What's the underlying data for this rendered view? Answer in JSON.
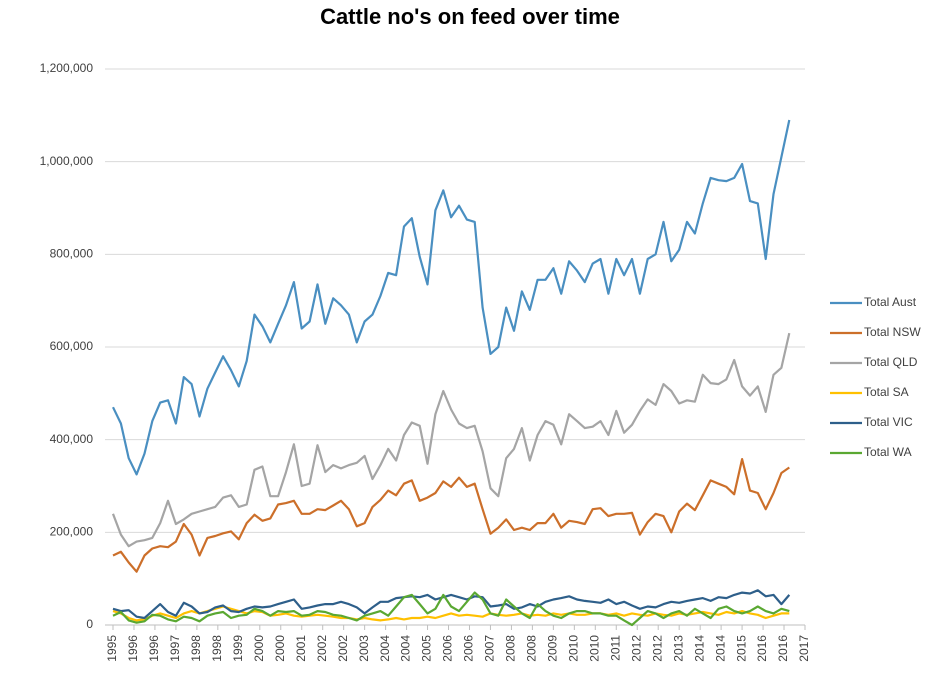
{
  "chart_data": {
    "type": "line",
    "title": "Cattle no's on feed over time",
    "x": [
      1995,
      1995.25,
      1995.5,
      1995.75,
      1996,
      1996.25,
      1996.5,
      1996.75,
      1997,
      1997.25,
      1997.5,
      1997.75,
      1998,
      1998.25,
      1998.5,
      1998.75,
      1999,
      1999.25,
      1999.5,
      1999.75,
      2000,
      2000.25,
      2000.5,
      2000.75,
      2001,
      2001.25,
      2001.5,
      2001.75,
      2002,
      2002.25,
      2002.5,
      2002.75,
      2003,
      2003.25,
      2003.5,
      2003.75,
      2004,
      2004.25,
      2004.5,
      2004.75,
      2005,
      2005.25,
      2005.5,
      2005.75,
      2006,
      2006.25,
      2006.5,
      2006.75,
      2007,
      2007.25,
      2007.5,
      2007.75,
      2008,
      2008.25,
      2008.5,
      2008.75,
      2009,
      2009.25,
      2009.5,
      2009.75,
      2010,
      2010.25,
      2010.5,
      2010.75,
      2011,
      2011.25,
      2011.5,
      2011.75,
      2012,
      2012.25,
      2012.5,
      2012.75,
      2013,
      2013.25,
      2013.5,
      2013.75,
      2014,
      2014.25,
      2014.5,
      2014.75,
      2015,
      2015.25,
      2015.5,
      2015.75,
      2016,
      2016.25,
      2016.5
    ],
    "xlim": [
      1995,
      2017
    ],
    "xticks": [
      1995,
      {
        "value": 1995.667,
        "label": "1996"
      },
      {
        "value": 1996.333,
        "label": "1996"
      },
      1997,
      {
        "value": 1997.667,
        "label": "1998"
      },
      {
        "value": 1998.333,
        "label": "1998"
      },
      1999,
      {
        "value": 1999.667,
        "label": "2000"
      },
      {
        "value": 2000.333,
        "label": "2000"
      },
      2001,
      {
        "value": 2001.667,
        "label": "2002"
      },
      {
        "value": 2002.333,
        "label": "2002"
      },
      2003,
      {
        "value": 2003.667,
        "label": "2004"
      },
      {
        "value": 2004.333,
        "label": "2004"
      },
      2005,
      {
        "value": 2005.667,
        "label": "2006"
      },
      {
        "value": 2006.333,
        "label": "2006"
      },
      2007,
      {
        "value": 2007.667,
        "label": "2008"
      },
      {
        "value": 2008.333,
        "label": "2008"
      },
      2009,
      {
        "value": 2009.667,
        "label": "2010"
      },
      {
        "value": 2010.333,
        "label": "2010"
      },
      2011,
      {
        "value": 2011.667,
        "label": "2012"
      },
      {
        "value": 2012.333,
        "label": "2012"
      },
      2013,
      {
        "value": 2013.667,
        "label": "2014"
      },
      {
        "value": 2014.333,
        "label": "2014"
      },
      2015,
      {
        "value": 2015.667,
        "label": "2016"
      },
      {
        "value": 2016.333,
        "label": "2016"
      },
      2017
    ],
    "ylim": [
      0,
      1200000
    ],
    "yticks": [
      0,
      {
        "value": 200000,
        "label": "200,000"
      },
      {
        "value": 400000,
        "label": "400,000"
      },
      {
        "value": 600000,
        "label": "600,000"
      },
      {
        "value": 800000,
        "label": "800,000"
      },
      {
        "value": 1000000,
        "label": "1,000,000"
      },
      {
        "value": 1200000,
        "label": "1,200,000"
      }
    ],
    "grid": true,
    "legend": "right",
    "series": [
      {
        "name": "Total Aust",
        "color": "#4a8fc1",
        "values": [
          470000,
          435000,
          360000,
          325000,
          370000,
          440000,
          480000,
          485000,
          435000,
          535000,
          520000,
          450000,
          510000,
          545000,
          580000,
          550000,
          515000,
          570000,
          670000,
          645000,
          610000,
          650000,
          690000,
          740000,
          640000,
          655000,
          735000,
          650000,
          705000,
          690000,
          670000,
          610000,
          655000,
          670000,
          710000,
          760000,
          755000,
          860000,
          878000,
          795000,
          735000,
          895000,
          938000,
          880000,
          905000,
          875000,
          870000,
          685000,
          585000,
          600000,
          685000,
          635000,
          720000,
          680000,
          745000,
          745000,
          770000,
          715000,
          785000,
          765000,
          740000,
          780000,
          790000,
          715000,
          790000,
          755000,
          790000,
          715000,
          790000,
          800000,
          870000,
          785000,
          810000,
          870000,
          845000,
          910000,
          965000,
          960000,
          958000,
          965000,
          995000,
          915000,
          910000,
          790000,
          930000,
          1010000,
          1090000
        ]
      },
      {
        "name": "Total NSW",
        "color": "#cc6f2a",
        "values": [
          150000,
          158000,
          135000,
          115000,
          150000,
          165000,
          170000,
          168000,
          180000,
          218000,
          195000,
          150000,
          188000,
          192000,
          198000,
          202000,
          185000,
          220000,
          238000,
          225000,
          230000,
          260000,
          263000,
          268000,
          240000,
          240000,
          250000,
          248000,
          258000,
          268000,
          250000,
          213000,
          220000,
          255000,
          270000,
          290000,
          280000,
          305000,
          312000,
          268000,
          275000,
          285000,
          310000,
          298000,
          318000,
          298000,
          305000,
          250000,
          197000,
          210000,
          228000,
          205000,
          210000,
          205000,
          220000,
          220000,
          240000,
          210000,
          225000,
          222000,
          218000,
          250000,
          252000,
          235000,
          240000,
          240000,
          242000,
          195000,
          222000,
          240000,
          235000,
          200000,
          245000,
          262000,
          248000,
          280000,
          312000,
          305000,
          298000,
          282000,
          358000,
          290000,
          285000,
          250000,
          285000,
          328000,
          340000
        ]
      },
      {
        "name": "Total QLD",
        "color": "#a5a5a5",
        "values": [
          240000,
          195000,
          170000,
          180000,
          183000,
          188000,
          220000,
          268000,
          218000,
          228000,
          240000,
          245000,
          250000,
          255000,
          275000,
          280000,
          255000,
          260000,
          335000,
          342000,
          278000,
          278000,
          330000,
          390000,
          300000,
          305000,
          388000,
          330000,
          345000,
          338000,
          345000,
          350000,
          365000,
          315000,
          345000,
          380000,
          355000,
          410000,
          437000,
          430000,
          348000,
          455000,
          505000,
          465000,
          435000,
          425000,
          430000,
          375000,
          295000,
          278000,
          360000,
          380000,
          425000,
          355000,
          410000,
          440000,
          432000,
          390000,
          455000,
          440000,
          425000,
          428000,
          440000,
          410000,
          462000,
          415000,
          432000,
          462000,
          487000,
          475000,
          520000,
          505000,
          478000,
          485000,
          482000,
          540000,
          522000,
          520000,
          530000,
          572000,
          515000,
          495000,
          515000,
          460000,
          540000,
          555000,
          630000
        ]
      },
      {
        "name": "Total SA",
        "color": "#ffc000",
        "values": [
          30000,
          25000,
          15000,
          10000,
          12000,
          20000,
          25000,
          20000,
          15000,
          25000,
          30000,
          25000,
          30000,
          35000,
          40000,
          35000,
          30000,
          25000,
          30000,
          28000,
          20000,
          22000,
          25000,
          20000,
          18000,
          20000,
          22000,
          20000,
          18000,
          15000,
          15000,
          12000,
          15000,
          12000,
          10000,
          12000,
          15000,
          12000,
          15000,
          15000,
          18000,
          15000,
          20000,
          25000,
          20000,
          22000,
          20000,
          18000,
          25000,
          22000,
          20000,
          22000,
          25000,
          20000,
          22000,
          20000,
          25000,
          22000,
          25000,
          22000,
          22000,
          25000,
          25000,
          22000,
          25000,
          20000,
          25000,
          22000,
          20000,
          25000,
          22000,
          20000,
          25000,
          22000,
          25000,
          28000,
          25000,
          22000,
          28000,
          25000,
          30000,
          25000,
          22000,
          15000,
          20000,
          25000,
          25000
        ]
      },
      {
        "name": "Total VIC",
        "color": "#2e5f8a",
        "values": [
          35000,
          30000,
          32000,
          18000,
          15000,
          30000,
          45000,
          28000,
          20000,
          48000,
          40000,
          25000,
          28000,
          38000,
          42000,
          30000,
          28000,
          35000,
          40000,
          38000,
          40000,
          45000,
          50000,
          55000,
          35000,
          38000,
          42000,
          45000,
          45000,
          50000,
          45000,
          38000,
          25000,
          38000,
          50000,
          50000,
          58000,
          60000,
          62000,
          60000,
          65000,
          55000,
          60000,
          65000,
          60000,
          55000,
          62000,
          60000,
          40000,
          42000,
          45000,
          35000,
          38000,
          45000,
          40000,
          50000,
          55000,
          58000,
          62000,
          55000,
          52000,
          50000,
          48000,
          55000,
          45000,
          50000,
          42000,
          35000,
          40000,
          38000,
          45000,
          50000,
          48000,
          52000,
          55000,
          58000,
          52000,
          60000,
          58000,
          65000,
          70000,
          68000,
          75000,
          62000,
          65000,
          45000,
          65000
        ]
      },
      {
        "name": "Total WA",
        "color": "#5aa832",
        "values": [
          20000,
          28000,
          10000,
          5000,
          8000,
          22000,
          20000,
          12000,
          8000,
          18000,
          15000,
          8000,
          20000,
          25000,
          28000,
          15000,
          20000,
          22000,
          35000,
          30000,
          20000,
          30000,
          28000,
          30000,
          20000,
          22000,
          30000,
          28000,
          22000,
          20000,
          15000,
          10000,
          20000,
          25000,
          30000,
          20000,
          40000,
          60000,
          65000,
          45000,
          25000,
          35000,
          65000,
          40000,
          30000,
          50000,
          70000,
          55000,
          25000,
          20000,
          55000,
          40000,
          25000,
          15000,
          45000,
          30000,
          20000,
          15000,
          25000,
          30000,
          30000,
          25000,
          25000,
          20000,
          20000,
          10000,
          0,
          15000,
          30000,
          25000,
          15000,
          25000,
          30000,
          20000,
          35000,
          25000,
          15000,
          35000,
          40000,
          30000,
          25000,
          30000,
          40000,
          30000,
          25000,
          35000,
          30000
        ]
      }
    ]
  }
}
